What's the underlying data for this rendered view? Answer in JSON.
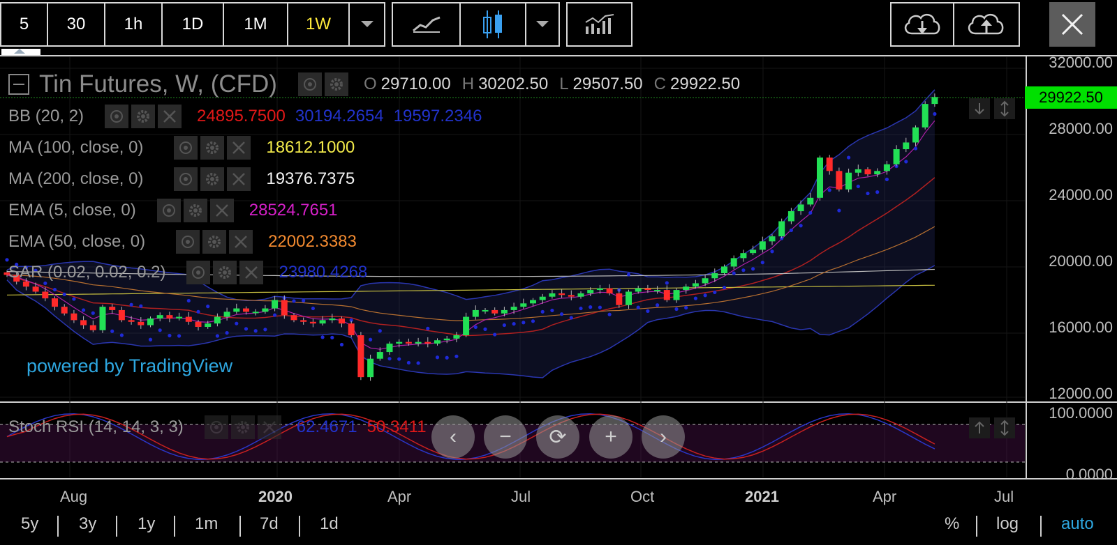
{
  "toolbar": {
    "intervals": [
      "5",
      "30",
      "1h",
      "1D",
      "1M",
      "1W"
    ],
    "active_interval": "1W",
    "icons": [
      "chevron-down-icon",
      "line-chart-icon",
      "candlestick-icon",
      "chevron-down-icon",
      "indicators-icon",
      "cloud-download-icon",
      "cloud-upload-icon",
      "close-icon"
    ]
  },
  "title": {
    "symbol": "Tin Futures, W, (CFD)",
    "o_label": "O",
    "o": "29710.00",
    "h_label": "H",
    "h": "30202.50",
    "l_label": "L",
    "l": "29507.50",
    "c_label": "C",
    "c": "29922.50"
  },
  "indicators": [
    {
      "name": "BB (20, 2)",
      "values": [
        {
          "v": "24895.7500",
          "color": "#e01818"
        },
        {
          "v": "30194.2654",
          "color": "#2233cc"
        },
        {
          "v": "19597.2346",
          "color": "#2233cc"
        }
      ]
    },
    {
      "name": "MA (100, close, 0)",
      "values": [
        {
          "v": "18612.1000",
          "color": "#f2ea4a"
        }
      ]
    },
    {
      "name": "MA (200, close, 0)",
      "values": [
        {
          "v": "19376.7375",
          "color": "#f2f2f2"
        }
      ]
    },
    {
      "name": "EMA (5, close, 0)",
      "values": [
        {
          "v": "28524.7651",
          "color": "#d620c8"
        }
      ]
    },
    {
      "name": "EMA (50, close, 0)",
      "values": [
        {
          "v": "22002.3383",
          "color": "#f28a30"
        }
      ]
    },
    {
      "name": "SAR (0.02, 0.02, 0.2)",
      "values": [
        {
          "v": "23980.4268",
          "color": "#2233cc"
        }
      ]
    }
  ],
  "oscillator": {
    "name": "Stoch RSI (14, 14, 3, 3)",
    "values": [
      {
        "v": "62.4671",
        "color": "#2233cc"
      },
      {
        "v": "50.3411",
        "color": "#e01818"
      }
    ],
    "axis": [
      "100.0000",
      "0.0000"
    ]
  },
  "price_axis": [
    "32000.00",
    "28000.00",
    "24000.00",
    "20000.00",
    "16000.00",
    "12000.00"
  ],
  "last_price": "29922.50",
  "time_axis": [
    {
      "label": "Aug",
      "bold": false
    },
    {
      "label": "2020",
      "bold": true
    },
    {
      "label": "Apr",
      "bold": false
    },
    {
      "label": "Jul",
      "bold": false
    },
    {
      "label": "Oct",
      "bold": false
    },
    {
      "label": "2021",
      "bold": true
    },
    {
      "label": "Apr",
      "bold": false
    },
    {
      "label": "Jul",
      "bold": false
    }
  ],
  "watermark": "powered by TradingView",
  "nav_icons": [
    "chevron-left-icon",
    "zoom-out-icon",
    "reset-icon",
    "zoom-in-icon",
    "chevron-right-icon"
  ],
  "ranges": [
    "5y",
    "3y",
    "1y",
    "1m",
    "7d",
    "1d"
  ],
  "scale_options": [
    "%",
    "log",
    "auto"
  ],
  "colors": {
    "up": "#22e055",
    "down": "#ff2a2a",
    "last_price_bg": "#00e000",
    "watermark": "#2ea7e0",
    "active": "#ffeb3b"
  },
  "chart_data": {
    "type": "candlestick",
    "interval": "W",
    "ylim": [
      12000,
      32000
    ],
    "candles_close_approx": [
      19300,
      18900,
      18600,
      18300,
      17900,
      17400,
      17000,
      16600,
      16300,
      16000,
      17400,
      17200,
      16600,
      16500,
      16300,
      16700,
      16900,
      16700,
      16800,
      16500,
      16200,
      16400,
      16800,
      17100,
      17300,
      17100,
      17100,
      17300,
      17800,
      16900,
      16600,
      16500,
      16400,
      16600,
      16700,
      16400,
      15700,
      13200,
      14300,
      14700,
      15200,
      15300,
      15200,
      15300,
      15200,
      15400,
      15500,
      15700,
      16800,
      17200,
      17200,
      17000,
      17200,
      17400,
      17600,
      17800,
      18000,
      18200,
      18100,
      18000,
      18200,
      18400,
      18500,
      18200,
      17500,
      18300,
      18500,
      18400,
      18400,
      17800,
      18400,
      18600,
      18800,
      19100,
      19400,
      19800,
      20300,
      20600,
      20800,
      21300,
      21600,
      22500,
      23100,
      23500,
      23900,
      26300,
      25500,
      24400,
      25400,
      25600,
      25300,
      25500,
      25900,
      26800,
      27200,
      28100,
      29500,
      29922.5
    ]
  }
}
